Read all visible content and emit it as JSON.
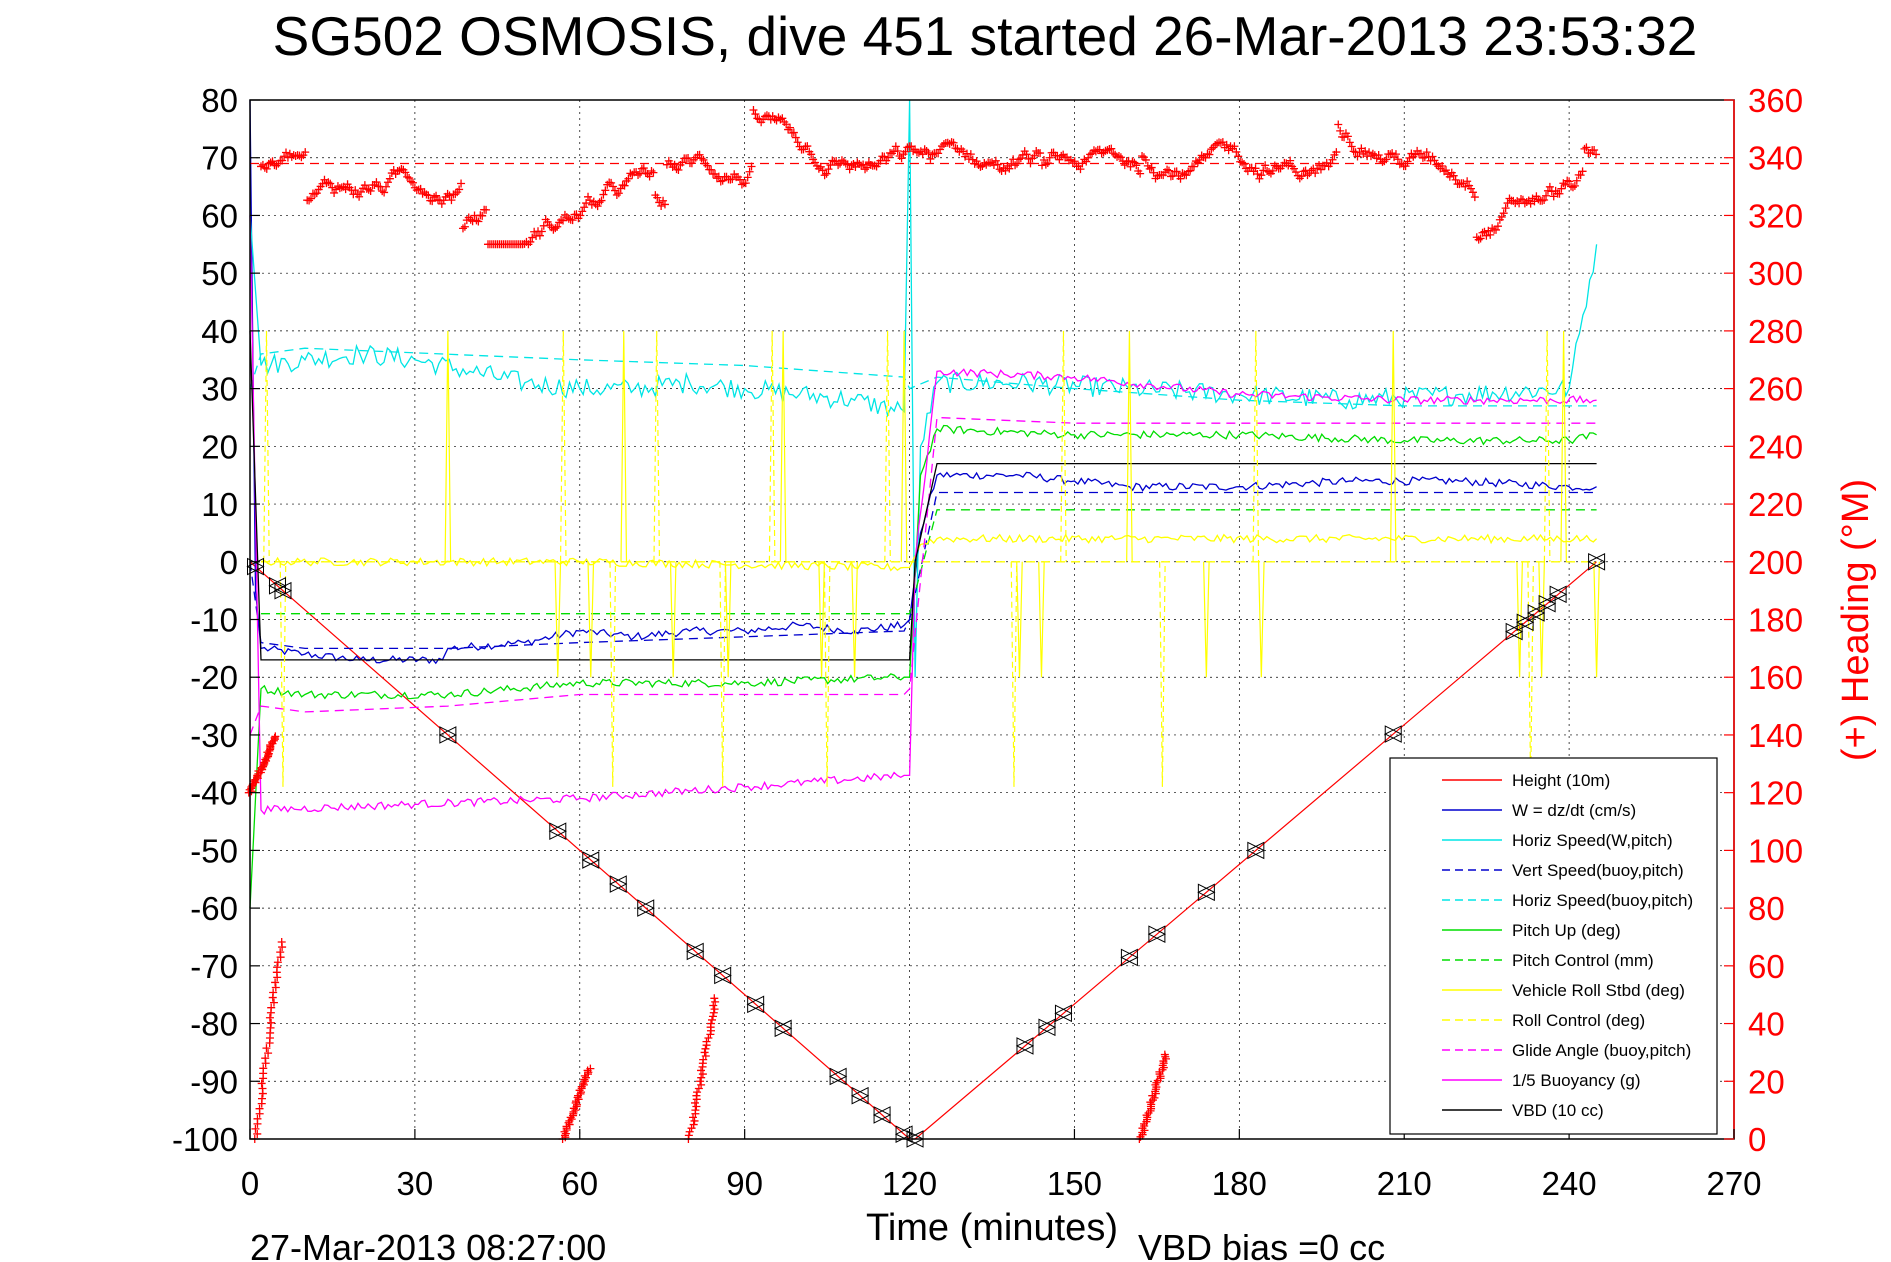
{
  "chart_data": {
    "type": "line",
    "title": "SG502 OSMOSIS, dive 451 started 26-Mar-2013 23:53:32",
    "xlabel": "Time (minutes)",
    "ylabel": "",
    "y2label": "(+) Heading (°M)",
    "xlim": [
      0,
      270
    ],
    "ylim": [
      -100,
      80
    ],
    "y2lim": [
      0,
      360
    ],
    "xticks": [
      "0",
      "30",
      "60",
      "90",
      "120",
      "150",
      "180",
      "210",
      "240",
      "270"
    ],
    "yticks": [
      "80",
      "70",
      "60",
      "50",
      "40",
      "30",
      "20",
      "10",
      "0",
      "-10",
      "-20",
      "-30",
      "-40",
      "-50",
      "-60",
      "-70",
      "-80",
      "-90",
      "-100"
    ],
    "y2ticks": [
      "360",
      "340",
      "320",
      "300",
      "280",
      "260",
      "240",
      "220",
      "200",
      "180",
      "160",
      "140",
      "120",
      "100",
      "80",
      "60",
      "40",
      "20",
      "0"
    ],
    "grid": true,
    "legend_position": "bottom-right",
    "footer_left": "27-Mar-2013 08:27:00",
    "footer_right": "VBD bias =0 cc",
    "heading_target": 338,
    "series": [
      {
        "name": "Height (10m)",
        "color": "#ff0000",
        "style": "solid",
        "x": [
          0,
          120,
          121,
          245
        ],
        "y": [
          0,
          -100,
          -100,
          0
        ]
      },
      {
        "name": "W = dz/dt (cm/s)",
        "color": "#0000cd",
        "style": "solid",
        "x": [
          0,
          1,
          2,
          10,
          20,
          35,
          36,
          50,
          60,
          70,
          80,
          90,
          100,
          110,
          119,
          120,
          122,
          125,
          140,
          150,
          160,
          180,
          200,
          220,
          240,
          245
        ],
        "y": [
          80,
          -5,
          -15,
          -16,
          -17,
          -17,
          -15,
          -14,
          -12,
          -13,
          -12,
          -12,
          -11,
          -12,
          -11,
          -10,
          5,
          15,
          15,
          14,
          13,
          13,
          14,
          14,
          13,
          13
        ]
      },
      {
        "name": "Horiz Speed(W,pitch)",
        "color": "#00e5e5",
        "style": "solid",
        "x": [
          0,
          2,
          10,
          20,
          30,
          40,
          50,
          60,
          70,
          80,
          90,
          100,
          110,
          119,
          120,
          121,
          122,
          125,
          140,
          160,
          180,
          200,
          220,
          240,
          245
        ],
        "y": [
          60,
          34,
          35,
          36,
          35,
          33,
          31,
          30,
          30,
          31,
          30,
          29,
          28,
          26,
          80,
          -20,
          20,
          31,
          31,
          30,
          29,
          28,
          29,
          30,
          55
        ]
      },
      {
        "name": "Vert Speed(buoy,pitch)",
        "color": "#0000cd",
        "style": "dashed",
        "x": [
          0,
          2,
          10,
          36,
          60,
          90,
          119,
          120,
          125,
          150,
          180,
          210,
          245
        ],
        "y": [
          0,
          -14,
          -15,
          -15,
          -14,
          -13,
          -12,
          -10,
          12,
          12,
          12,
          12,
          12
        ]
      },
      {
        "name": "Horiz Speed(buoy,pitch)",
        "color": "#00e5e5",
        "style": "dashed",
        "x": [
          0,
          2,
          10,
          60,
          90,
          119,
          120,
          125,
          150,
          180,
          210,
          245
        ],
        "y": [
          30,
          36,
          37,
          35,
          34,
          32,
          30,
          32,
          30,
          28,
          27,
          27
        ]
      },
      {
        "name": "Pitch Up (deg)",
        "color": "#00dd00",
        "style": "solid",
        "x": [
          0,
          2,
          10,
          36,
          60,
          90,
          119,
          120,
          122,
          125,
          150,
          180,
          210,
          240,
          245
        ],
        "y": [
          -60,
          -22,
          -23,
          -23,
          -21,
          -21,
          -20,
          -20,
          15,
          23,
          22,
          22,
          21,
          21,
          22
        ]
      },
      {
        "name": "Pitch Control (mm)",
        "color": "#00dd00",
        "style": "dashed",
        "x": [
          2,
          119,
          120,
          125,
          245
        ],
        "y": [
          -9,
          -9,
          -9,
          9,
          9
        ]
      },
      {
        "name": "Vehicle Roll Stbd (deg)",
        "color": "#ffff00",
        "style": "solid",
        "x": [
          2,
          60,
          119,
          120,
          122,
          125,
          245
        ],
        "y": [
          0,
          0,
          -1,
          -1,
          3,
          4,
          4
        ]
      },
      {
        "name": "Roll Control (deg)",
        "color": "#ffff00",
        "style": "dashed",
        "x": [
          2,
          119,
          120,
          125,
          245
        ],
        "y": [
          0,
          0,
          0,
          0,
          0
        ]
      },
      {
        "name": "Glide Angle (buoy,pitch)",
        "color": "#ff00ff",
        "style": "dashed",
        "x": [
          0,
          2,
          10,
          36,
          60,
          90,
          119,
          120,
          125,
          150,
          180,
          210,
          245
        ],
        "y": [
          -30,
          -25,
          -26,
          -25,
          -23,
          -23,
          -23,
          -22,
          25,
          24,
          24,
          24,
          24
        ]
      },
      {
        "name": "1/5 Buoyancy (g)",
        "color": "#ff00ff",
        "style": "solid",
        "x": [
          0,
          2,
          30,
          60,
          90,
          119,
          120,
          121,
          125,
          150,
          180,
          210,
          245
        ],
        "y": [
          60,
          -43,
          -42,
          -41,
          -39,
          -37,
          -37,
          0,
          33,
          32,
          29,
          28,
          28
        ]
      },
      {
        "name": "VBD (10 cc)",
        "color": "#000000",
        "style": "solid",
        "x": [
          0,
          2,
          36,
          119,
          120,
          121,
          125,
          245
        ],
        "y": [
          40,
          -17,
          -17,
          -17,
          -17,
          0,
          17,
          17
        ]
      }
    ]
  }
}
